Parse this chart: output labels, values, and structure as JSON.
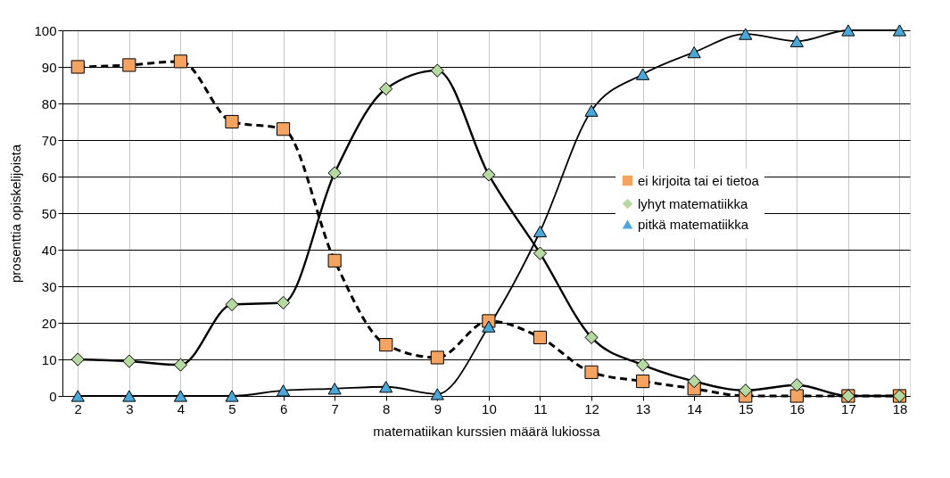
{
  "chart_data": {
    "type": "line",
    "xlabel": "matematiikan kurssien määrä lukiossa",
    "ylabel": "prosenttia opiskelijoista",
    "x": [
      2,
      3,
      4,
      5,
      6,
      7,
      8,
      9,
      10,
      11,
      12,
      13,
      14,
      15,
      16,
      17,
      18
    ],
    "xlim": [
      1.7,
      18.2
    ],
    "xticks": [
      2,
      3,
      4,
      5,
      6,
      7,
      8,
      9,
      10,
      11,
      12,
      13,
      14,
      15,
      16,
      17,
      18
    ],
    "ylim": [
      0,
      100
    ],
    "yticks": [
      0,
      10,
      20,
      30,
      40,
      50,
      60,
      70,
      80,
      90,
      100
    ],
    "grid": true,
    "legend": "right",
    "series": [
      {
        "name": "ei kirjoita tai ei tietoa",
        "color": "#f4a460",
        "marker": "square",
        "line_style": "dashed",
        "values": [
          90,
          90.5,
          91.5,
          75,
          73,
          37,
          14,
          10.5,
          20.5,
          16,
          6.5,
          4,
          2,
          0,
          0,
          0,
          0
        ]
      },
      {
        "name": "lyhyt matematiikka",
        "color": "#b5d9a0",
        "marker": "diamond",
        "line_style": "solid",
        "values": [
          10,
          9.5,
          8.5,
          25,
          25.5,
          61,
          84,
          89,
          60.5,
          39,
          16,
          8.5,
          4,
          1.5,
          3,
          0,
          0
        ]
      },
      {
        "name": "pitkä matematiikka",
        "color": "#4aa8d8",
        "marker": "triangle",
        "line_style": "solid",
        "values": [
          0,
          0,
          0,
          0,
          1.5,
          2,
          2.5,
          0.5,
          19,
          45,
          78,
          88,
          94,
          99,
          97,
          100,
          100
        ]
      }
    ]
  }
}
